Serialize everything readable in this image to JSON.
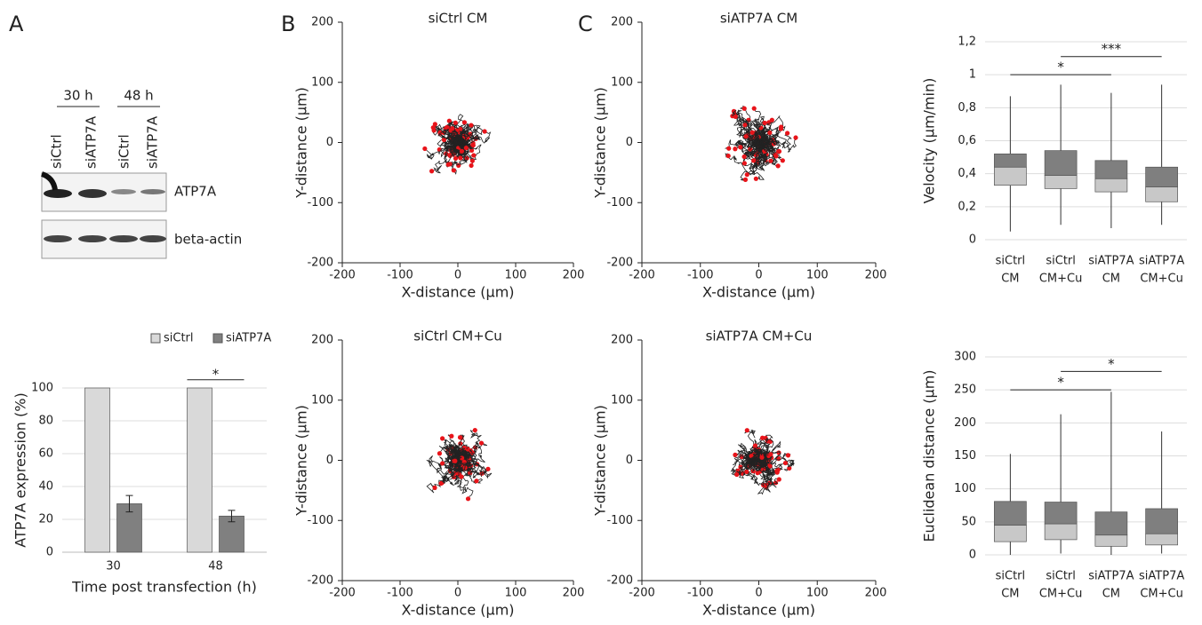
{
  "panel_labels": [
    "A",
    "B",
    "C"
  ],
  "blot": {
    "time_labels": [
      "30 h",
      "48 h"
    ],
    "lane_labels": [
      "siCtrl",
      "siATP7A",
      "siCtrl",
      "siATP7A"
    ],
    "band_labels": [
      "ATP7A",
      "beta-actin"
    ]
  },
  "chart_data": [
    {
      "type": "bar",
      "ylabel": "ATP7A expression (%)",
      "xlabel": "Time post transfection (h)",
      "categories": [
        "30",
        "48"
      ],
      "series": [
        {
          "name": "siCtrl",
          "color": "#d9d9d9",
          "values": [
            100,
            100
          ]
        },
        {
          "name": "siATP7A",
          "color": "#808080",
          "values": [
            29.5,
            22
          ],
          "errors": [
            5,
            3.5
          ]
        }
      ],
      "ylim": [
        0,
        100
      ],
      "yticks": [
        0,
        20,
        40,
        60,
        80,
        100
      ],
      "grid": true,
      "legend": "top",
      "annotations": [
        {
          "text": "*",
          "category": 1,
          "y": 105
        }
      ]
    },
    {
      "type": "trajectory",
      "title": "siCtrl CM",
      "xlabel": "X-distance (µm)",
      "ylabel": "Y-distance (µm)",
      "xlim": [
        -200,
        200
      ],
      "ylim": [
        -200,
        200
      ],
      "xticks": [
        -200,
        -100,
        0,
        100,
        200
      ],
      "yticks": [
        -200,
        -100,
        0,
        100,
        200
      ],
      "color": "#222222",
      "end_color": "#e8141a"
    },
    {
      "type": "trajectory",
      "title": "siATP7A CM",
      "xlabel": "X-distance (µm)",
      "ylabel": "Y-distance (µm)",
      "xlim": [
        -200,
        200
      ],
      "ylim": [
        -200,
        200
      ],
      "xticks": [
        -200,
        -100,
        0,
        100,
        200
      ],
      "yticks": [
        -200,
        -100,
        0,
        100,
        200
      ],
      "color": "#222222",
      "end_color": "#e8141a"
    },
    {
      "type": "trajectory",
      "title": "siCtrl CM+Cu",
      "xlabel": "X-distance (µm)",
      "ylabel": "Y-distance (µm)",
      "xlim": [
        -200,
        200
      ],
      "ylim": [
        -200,
        200
      ],
      "xticks": [
        -200,
        -100,
        0,
        100,
        200
      ],
      "yticks": [
        -200,
        -100,
        0,
        100,
        200
      ],
      "color": "#222222",
      "end_color": "#e8141a"
    },
    {
      "type": "trajectory",
      "title": "siATP7A CM+Cu",
      "xlabel": "X-distance (µm)",
      "ylabel": "Y-distance (µm)",
      "xlim": [
        -200,
        200
      ],
      "ylim": [
        -200,
        200
      ],
      "xticks": [
        -200,
        -100,
        0,
        100,
        200
      ],
      "yticks": [
        -200,
        -100,
        0,
        100,
        200
      ],
      "color": "#222222",
      "end_color": "#e8141a"
    },
    {
      "type": "box",
      "ylabel": "Velocity (µm/min)",
      "categories": [
        [
          "siCtrl",
          "CM"
        ],
        [
          "siCtrl",
          "CM+Cu"
        ],
        [
          "siATP7A",
          "CM"
        ],
        [
          "siATP7A",
          "CM+Cu"
        ]
      ],
      "boxes": [
        {
          "min": 0.05,
          "q1": 0.33,
          "median": 0.44,
          "q3": 0.52,
          "max": 0.87
        },
        {
          "min": 0.09,
          "q1": 0.31,
          "median": 0.39,
          "q3": 0.54,
          "max": 0.94
        },
        {
          "min": 0.07,
          "q1": 0.29,
          "median": 0.37,
          "q3": 0.48,
          "max": 0.89
        },
        {
          "min": 0.09,
          "q1": 0.23,
          "median": 0.32,
          "q3": 0.44,
          "max": 0.94
        }
      ],
      "colors": [
        "#c8c8c8",
        "#7f7f7f"
      ],
      "ylim": [
        0,
        1.2
      ],
      "yticks": [
        0,
        {
          "value": 0.2,
          "label": "0,2"
        },
        {
          "value": 0.4,
          "label": "0,4"
        },
        {
          "value": 0.6,
          "label": "0,6"
        },
        {
          "value": 0.8,
          "label": "0,8"
        },
        1,
        {
          "value": 1.2,
          "label": "1,2"
        }
      ],
      "grid": true,
      "annotations": [
        {
          "text": "*",
          "from": 0,
          "to": 2,
          "y": 1.0
        },
        {
          "text": "***",
          "from": 1,
          "to": 3,
          "y": 1.11
        }
      ]
    },
    {
      "type": "box",
      "ylabel": "Euclidean distance (µm)",
      "categories": [
        [
          "siCtrl",
          "CM"
        ],
        [
          "siCtrl",
          "CM+Cu"
        ],
        [
          "siATP7A",
          "CM"
        ],
        [
          "siATP7A",
          "CM+Cu"
        ]
      ],
      "boxes": [
        {
          "min": 0,
          "q1": 20,
          "median": 45,
          "q3": 81,
          "max": 153
        },
        {
          "min": 2,
          "q1": 23,
          "median": 47,
          "q3": 80,
          "max": 213
        },
        {
          "min": 0,
          "q1": 13,
          "median": 30,
          "q3": 65,
          "max": 247
        },
        {
          "min": 2,
          "q1": 15,
          "median": 32,
          "q3": 70,
          "max": 187
        }
      ],
      "colors": [
        "#c8c8c8",
        "#7f7f7f"
      ],
      "ylim": [
        0,
        300
      ],
      "yticks": [
        0,
        50,
        100,
        150,
        200,
        250,
        300
      ],
      "grid": true,
      "annotations": [
        {
          "text": "*",
          "from": 0,
          "to": 2,
          "y": 250
        },
        {
          "text": "*",
          "from": 1,
          "to": 3,
          "y": 278
        }
      ]
    }
  ]
}
